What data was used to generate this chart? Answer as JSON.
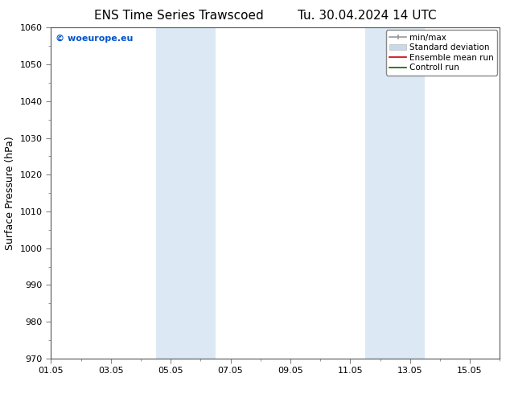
{
  "title_left": "ENS Time Series Trawscoed",
  "title_right": "Tu. 30.04.2024 14 UTC",
  "ylabel": "Surface Pressure (hPa)",
  "ylim": [
    970,
    1060
  ],
  "yticks": [
    970,
    980,
    990,
    1000,
    1010,
    1020,
    1030,
    1040,
    1050,
    1060
  ],
  "xtick_labels": [
    "01.05",
    "03.05",
    "05.05",
    "07.05",
    "09.05",
    "11.05",
    "13.05",
    "15.05"
  ],
  "xtick_positions": [
    0,
    2,
    4,
    6,
    8,
    10,
    12,
    14
  ],
  "xlim": [
    0,
    15
  ],
  "watermark": "© woeurope.eu",
  "watermark_color": "#0055cc",
  "bg_color": "#ffffff",
  "plot_bg_color": "#ffffff",
  "shaded_bands": [
    {
      "x_start": 3.5,
      "x_end": 4.5,
      "color": "#dce9f5"
    },
    {
      "x_start": 4.5,
      "x_end": 5.5,
      "color": "#dce9f5"
    },
    {
      "x_start": 10.5,
      "x_end": 11.5,
      "color": "#dce9f5"
    },
    {
      "x_start": 11.5,
      "x_end": 12.5,
      "color": "#dce9f5"
    }
  ],
  "legend_items": [
    {
      "label": "min/max",
      "color": "#999999",
      "lw": 1.2
    },
    {
      "label": "Standard deviation",
      "color": "#c8daea",
      "lw": 8
    },
    {
      "label": "Ensemble mean run",
      "color": "#cc0000",
      "lw": 1.2
    },
    {
      "label": "Controll run",
      "color": "#006600",
      "lw": 1.2
    }
  ],
  "title_fontsize": 11,
  "label_fontsize": 9,
  "tick_fontsize": 8,
  "legend_fontsize": 7.5,
  "watermark_fontsize": 8
}
